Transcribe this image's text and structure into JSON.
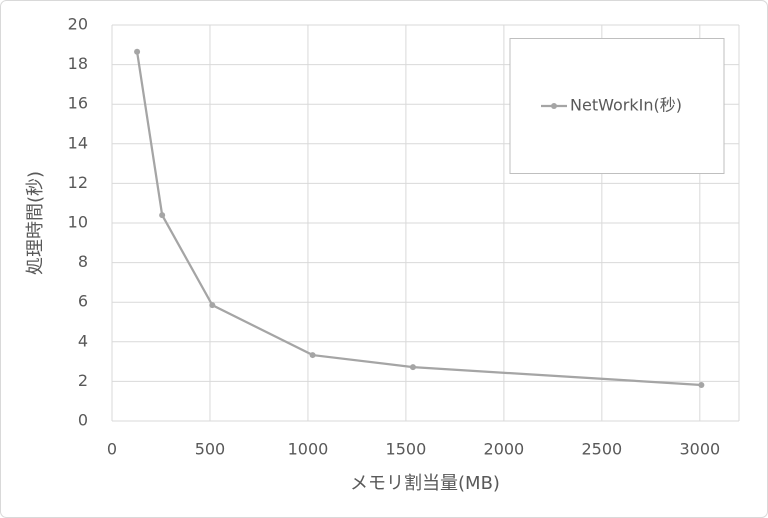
{
  "chart_data": {
    "type": "line",
    "x_label": "メモリ割当量(MB)",
    "y_label": "処理時間(秒)",
    "x": [
      128,
      256,
      512,
      1024,
      1536,
      3008
    ],
    "series": [
      {
        "name": "NetWorkIn(秒)",
        "color": "#a5a5a5",
        "values": [
          18.65,
          10.4,
          5.85,
          3.33,
          2.72,
          1.82
        ]
      }
    ],
    "xlim": [
      0,
      3200
    ],
    "xticks": [
      0,
      500,
      1000,
      1500,
      2000,
      2500,
      3000
    ],
    "ylim": [
      0,
      20
    ],
    "yticks": [
      0,
      2,
      4,
      6,
      8,
      10,
      12,
      14,
      16,
      18,
      20
    ],
    "grid": true,
    "legend": "top-right"
  }
}
